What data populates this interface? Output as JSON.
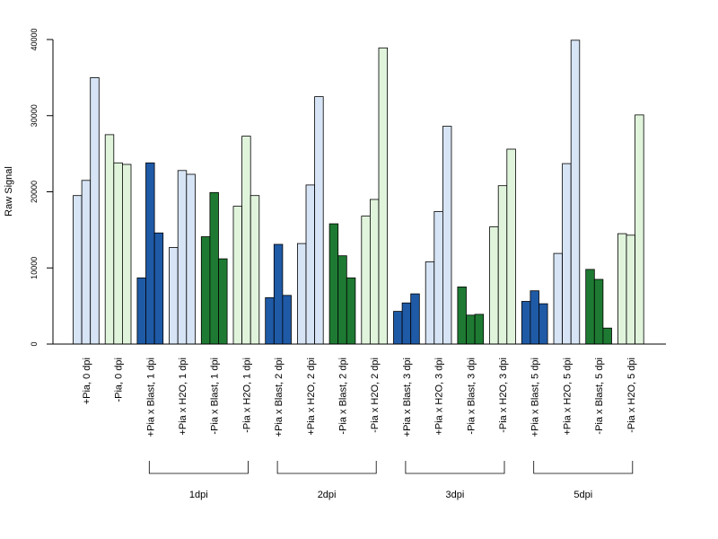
{
  "colors": {
    "light_blue": "#d6e4f5",
    "dark_blue": "#1f5aa6",
    "dark_green": "#1e7a32",
    "light_green": "#e0f4dc",
    "bar_stroke": "#000000"
  },
  "chart_data": {
    "type": "bar",
    "ylabel": "Raw Signal",
    "xlabel": "",
    "ylim": [
      0,
      40000
    ],
    "yticks": [
      "0",
      "10000",
      "20000",
      "30000",
      "40000"
    ],
    "grid": false,
    "categories": [
      "+Pia, 0 dpi",
      "-Pia, 0 dpi",
      "+Pia x Blast, 1 dpi",
      "+Pia x H2O, 1 dpi",
      "-Pia x Blast, 1 dpi",
      "-Pia x H2O, 1 dpi",
      "+Pia x Blast, 2 dpi",
      "+Pia x H2O, 2 dpi",
      "-Pia x Blast, 2 dpi",
      "-Pia x H2O, 2 dpi",
      "+Pia x Blast, 3 dpi",
      "+Pia x H2O, 3 dpi",
      "-Pia x Blast, 3 dpi",
      "-Pia x H2O, 3 dpi",
      "+Pia x Blast, 5 dpi",
      "+Pia x H2O, 5 dpi",
      "-Pia x Blast, 5 dpi",
      "-Pia x H2O, 5 dpi"
    ],
    "category_colors": [
      "light_blue",
      "light_green",
      "dark_blue",
      "light_blue",
      "dark_green",
      "light_green",
      "dark_blue",
      "light_blue",
      "dark_green",
      "light_green",
      "dark_blue",
      "light_blue",
      "dark_green",
      "light_green",
      "dark_blue",
      "light_blue",
      "dark_green",
      "light_green"
    ],
    "replicate_values": [
      [
        19500,
        21500,
        35000
      ],
      [
        27500,
        23800,
        23600
      ],
      [
        8700,
        23800,
        14600
      ],
      [
        12700,
        22800,
        22300
      ],
      [
        14100,
        19900,
        11200
      ],
      [
        18100,
        27300,
        19500
      ],
      [
        6100,
        13100,
        6400
      ],
      [
        13200,
        20900,
        32500
      ],
      [
        15800,
        11600,
        8700
      ],
      [
        16800,
        19000,
        38900
      ],
      [
        4300,
        5400,
        6600
      ],
      [
        10800,
        17400,
        28600
      ],
      [
        7500,
        3800,
        3900
      ],
      [
        15400,
        20800,
        25600
      ],
      [
        5600,
        7000,
        5300
      ],
      [
        11900,
        23700,
        39900
      ],
      [
        9800,
        8500,
        2100
      ],
      [
        14500,
        14300,
        30100
      ]
    ],
    "groups": [
      {
        "label": "1dpi",
        "first": 2,
        "last": 5
      },
      {
        "label": "2dpi",
        "first": 6,
        "last": 9
      },
      {
        "label": "3dpi",
        "first": 10,
        "last": 13
      },
      {
        "label": "5dpi",
        "first": 14,
        "last": 17
      }
    ]
  }
}
